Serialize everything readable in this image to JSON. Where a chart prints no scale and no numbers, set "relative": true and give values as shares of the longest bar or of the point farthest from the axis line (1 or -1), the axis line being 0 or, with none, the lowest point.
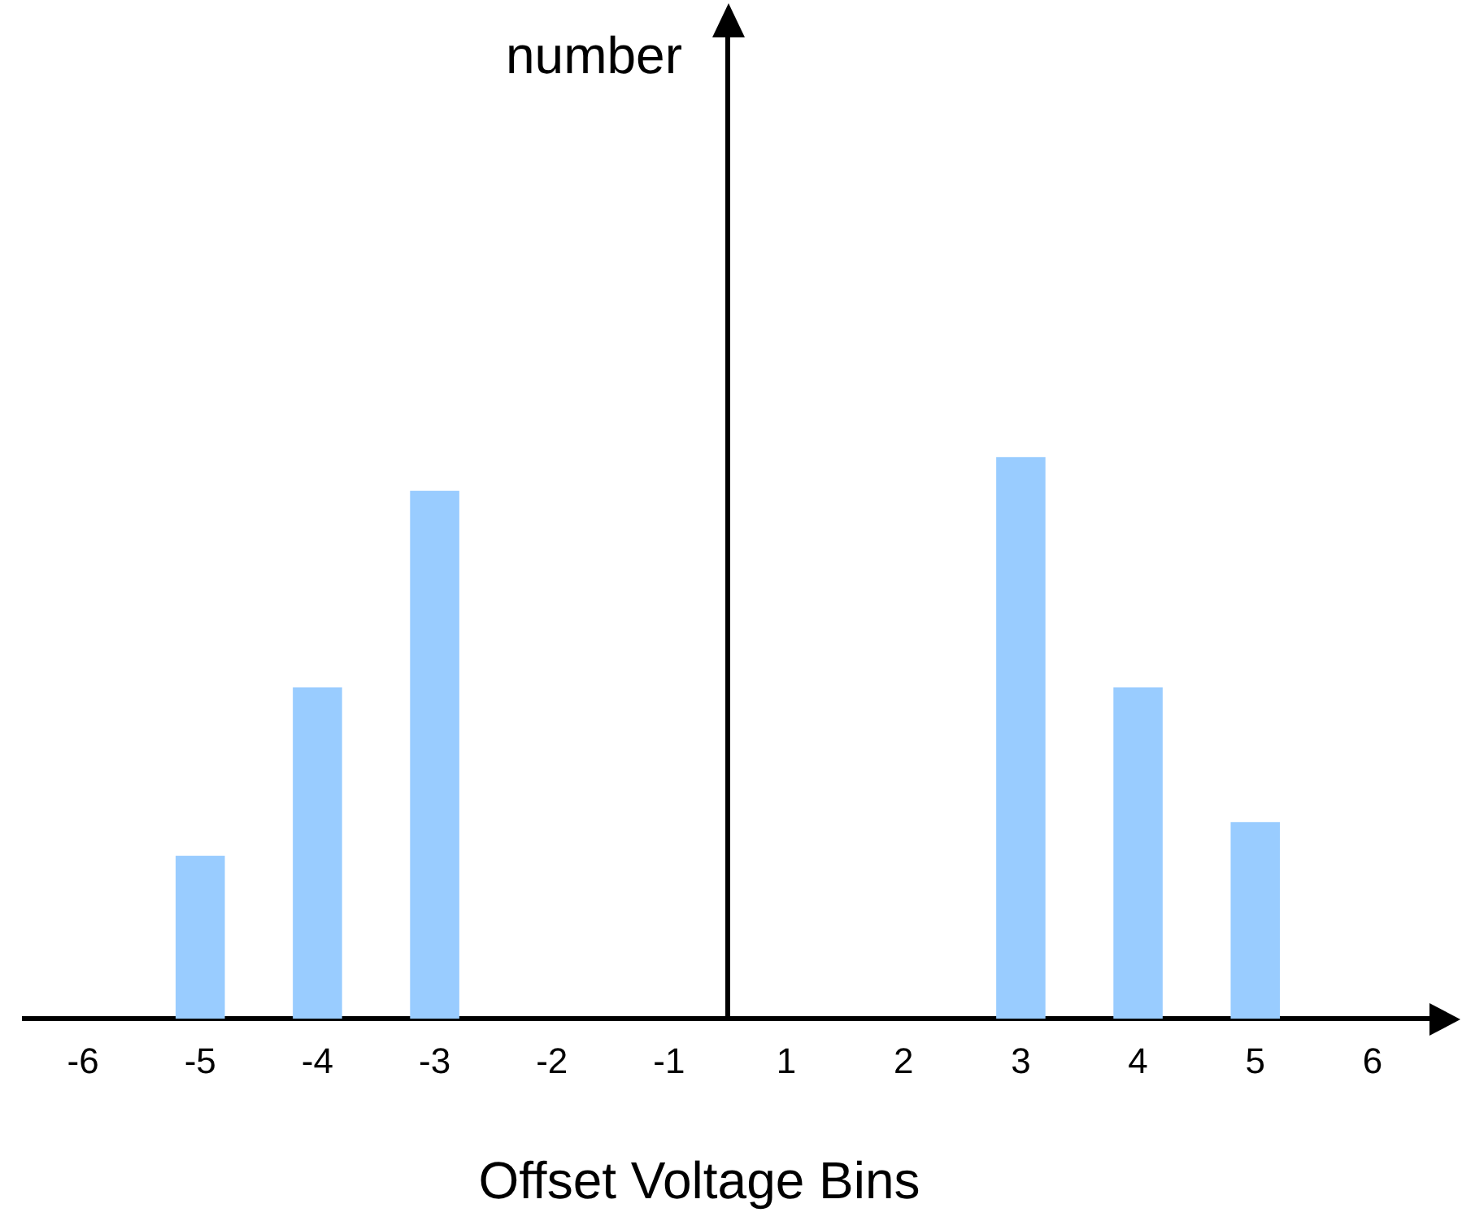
{
  "chart_data": {
    "type": "bar",
    "relative": true,
    "xlabel": "Offset Voltage Bins",
    "annotations": [
      "number"
    ],
    "categories": [
      "-6",
      "-5",
      "-4",
      "-3",
      "-2",
      "-1",
      "1",
      "2",
      "3",
      "4",
      "5",
      "6"
    ],
    "series": [
      {
        "color": "#99ccff",
        "values": [
          0,
          0.29,
          0.59,
          0.94,
          0,
          0,
          0,
          0,
          1,
          0.59,
          0.35,
          0
        ]
      }
    ],
    "legend": false,
    "grid": false,
    "tick_labels": "x"
  }
}
